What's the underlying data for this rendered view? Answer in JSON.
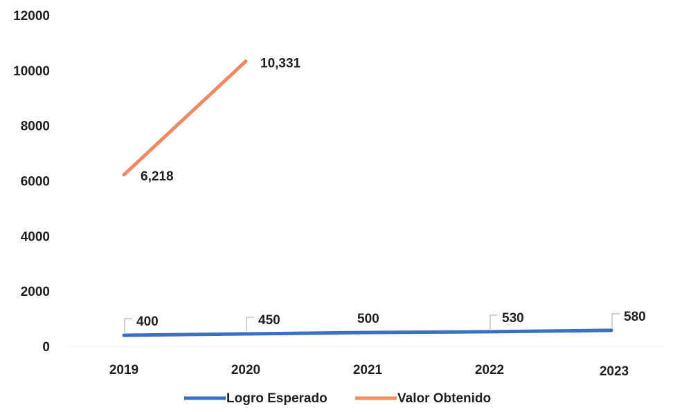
{
  "chart_data": {
    "type": "line",
    "categories": [
      "2019",
      "2020",
      "2021",
      "2022",
      "2023"
    ],
    "series": [
      {
        "name": "Logro Esperado",
        "color": "#3a6fc4",
        "values": [
          400,
          450,
          500,
          530,
          580
        ],
        "labels": [
          "400",
          "450",
          "500",
          "530",
          "580"
        ]
      },
      {
        "name": "Valor Obtenido",
        "color": "#f08a64",
        "values": [
          6218,
          10331,
          null,
          null,
          null
        ],
        "labels": [
          "6,218",
          "10,331",
          "",
          "",
          ""
        ]
      }
    ],
    "yticks": [
      "0",
      "2000",
      "4000",
      "6000",
      "8000",
      "10000",
      "12000"
    ],
    "ylim": [
      0,
      12000
    ],
    "title": "",
    "xlabel": "",
    "ylabel": "",
    "grid": false,
    "legend": "bottom"
  }
}
